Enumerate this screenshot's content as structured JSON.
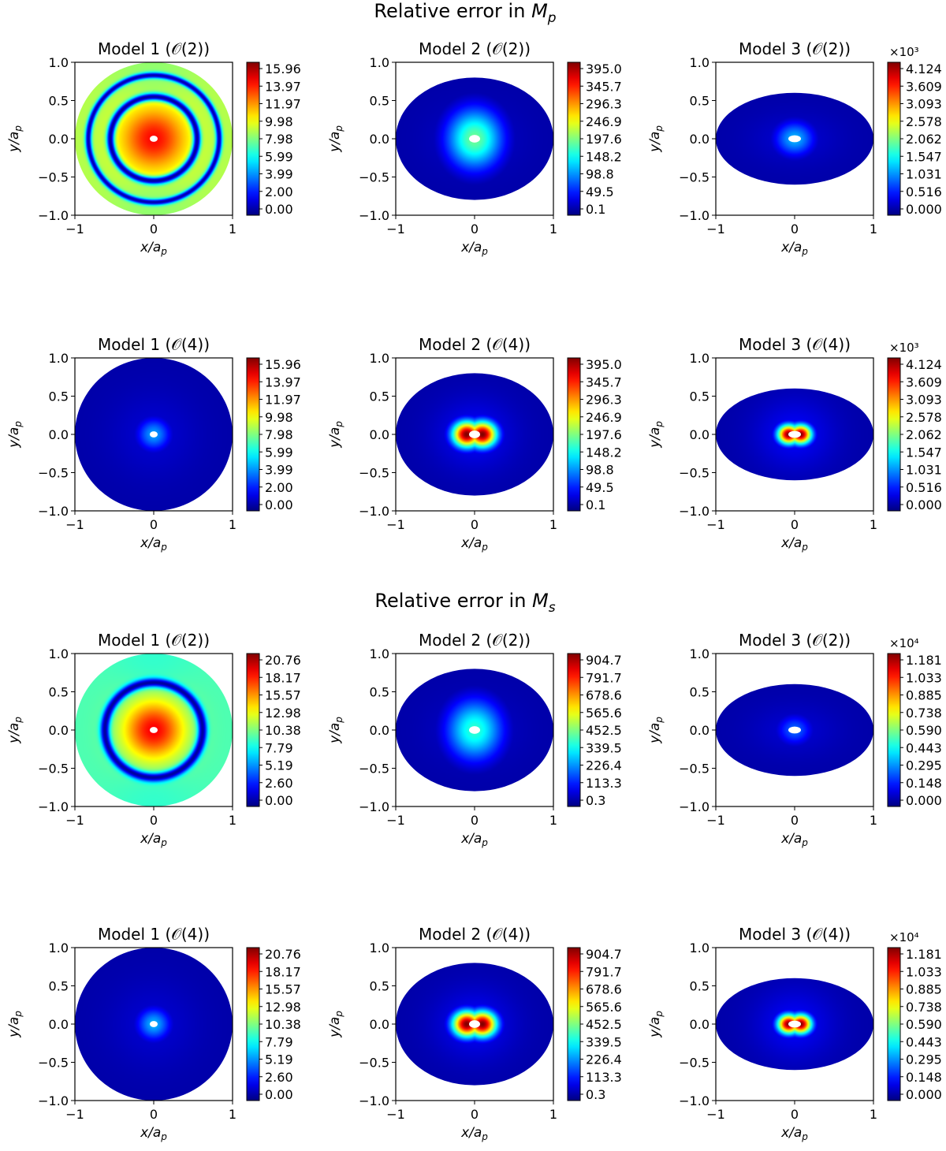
{
  "figure": {
    "section_titles": [
      {
        "text": "Relative error in ",
        "var": "M",
        "sub": "p"
      },
      {
        "text": "Relative error in ",
        "var": "M",
        "sub": "s"
      }
    ],
    "x_label": {
      "var": "x",
      "den": "a",
      "sub": "p"
    },
    "y_label": {
      "var": "y",
      "den": "a",
      "sub": "p"
    }
  },
  "chart_data": [
    {
      "type": "heatmap",
      "title": "Model 1 (𝒪(2))",
      "section": "Relative error in M_p",
      "xlim": [
        -1,
        1
      ],
      "ylim": [
        -1,
        1
      ],
      "x_ticks": [
        "−1",
        "0",
        "1"
      ],
      "y_ticks": [
        "1.0",
        "0.5",
        "0.0",
        "−0.5",
        "−1.0"
      ],
      "domain": {
        "shape": "disk",
        "semi_x": 1.0,
        "semi_y": 1.0
      },
      "hole": {
        "semi_x": 0.05,
        "semi_y": 0.04
      },
      "colorbar": {
        "ticks": [
          "15.96",
          "13.97",
          "11.97",
          "9.98",
          "7.98",
          "5.99",
          "3.99",
          "2.00",
          "0.00"
        ],
        "scale_label": ""
      },
      "pattern": {
        "kind": "rings",
        "center_intensity": 0.87,
        "rings": [
          {
            "r": 0.55,
            "w": 0.05,
            "i": 0.03
          },
          {
            "r": 0.83,
            "w": 0.04,
            "i": 0.04
          }
        ],
        "edge_intensity": 0.55,
        "lobes": 0
      }
    },
    {
      "type": "heatmap",
      "title": "Model 2 (𝒪(2))",
      "section": "Relative error in M_p",
      "xlim": [
        -1,
        1
      ],
      "ylim": [
        -1,
        1
      ],
      "x_ticks": [
        "−1",
        "0",
        "1"
      ],
      "y_ticks": [
        "1.0",
        "0.5",
        "0.0",
        "−0.5",
        "−1.0"
      ],
      "domain": {
        "shape": "ellipse",
        "semi_x": 1.0,
        "semi_y": 0.8
      },
      "hole": {
        "semi_x": 0.07,
        "semi_y": 0.05
      },
      "colorbar": {
        "ticks": [
          "395.0",
          "345.7",
          "296.3",
          "246.9",
          "197.6",
          "148.2",
          "98.8",
          "49.5",
          "0.1"
        ],
        "scale_label": ""
      },
      "pattern": {
        "kind": "blob",
        "peak": 0.48,
        "spread_x": 0.25,
        "spread_y": 0.28,
        "lobes": 0
      }
    },
    {
      "type": "heatmap",
      "title": "Model 3 (𝒪(2))",
      "section": "Relative error in M_p",
      "xlim": [
        -1,
        1
      ],
      "ylim": [
        -1,
        1
      ],
      "x_ticks": [
        "−1",
        "0",
        "1"
      ],
      "y_ticks": [
        "1.0",
        "0.5",
        "0.0",
        "−0.5",
        "−1.0"
      ],
      "domain": {
        "shape": "ellipse",
        "semi_x": 1.0,
        "semi_y": 0.6
      },
      "hole": {
        "semi_x": 0.08,
        "semi_y": 0.045
      },
      "colorbar": {
        "ticks": [
          "4.124",
          "3.609",
          "3.093",
          "2.578",
          "2.062",
          "1.547",
          "1.031",
          "0.516",
          "0.000"
        ],
        "scale_label": "×10³"
      },
      "pattern": {
        "kind": "blob",
        "peak": 0.3,
        "spread_x": 0.18,
        "spread_y": 0.16,
        "lobes": 0
      }
    },
    {
      "type": "heatmap",
      "title": "Model 1 (𝒪(4))",
      "section": "Relative error in M_p",
      "xlim": [
        -1,
        1
      ],
      "ylim": [
        -1,
        1
      ],
      "x_ticks": [
        "−1",
        "0",
        "1"
      ],
      "y_ticks": [
        "1.0",
        "0.5",
        "0.0",
        "−0.5",
        "−1.0"
      ],
      "domain": {
        "shape": "disk",
        "semi_x": 1.0,
        "semi_y": 1.0
      },
      "hole": {
        "semi_x": 0.05,
        "semi_y": 0.04
      },
      "colorbar": {
        "ticks": [
          "15.96",
          "13.97",
          "11.97",
          "9.98",
          "7.98",
          "5.99",
          "3.99",
          "2.00",
          "0.00"
        ],
        "scale_label": ""
      },
      "pattern": {
        "kind": "blob",
        "peak": 0.28,
        "spread_x": 0.15,
        "spread_y": 0.15,
        "lobes": 0
      }
    },
    {
      "type": "heatmap",
      "title": "Model 2 (𝒪(4))",
      "section": "Relative error in M_p",
      "xlim": [
        -1,
        1
      ],
      "ylim": [
        -1,
        1
      ],
      "x_ticks": [
        "−1",
        "0",
        "1"
      ],
      "y_ticks": [
        "1.0",
        "0.5",
        "0.0",
        "−0.5",
        "−1.0"
      ],
      "domain": {
        "shape": "ellipse",
        "semi_x": 1.0,
        "semi_y": 0.8
      },
      "hole": {
        "semi_x": 0.07,
        "semi_y": 0.05
      },
      "colorbar": {
        "ticks": [
          "395.0",
          "345.7",
          "296.3",
          "246.9",
          "197.6",
          "148.2",
          "98.8",
          "49.5",
          "0.1"
        ],
        "scale_label": ""
      },
      "pattern": {
        "kind": "blob",
        "peak": 1.0,
        "spread_x": 0.13,
        "spread_y": 0.12,
        "lobes": 2
      }
    },
    {
      "type": "heatmap",
      "title": "Model 3 (𝒪(4))",
      "section": "Relative error in M_p",
      "xlim": [
        -1,
        1
      ],
      "ylim": [
        -1,
        1
      ],
      "x_ticks": [
        "−1",
        "0",
        "1"
      ],
      "y_ticks": [
        "1.0",
        "0.5",
        "0.0",
        "−0.5",
        "−1.0"
      ],
      "domain": {
        "shape": "ellipse",
        "semi_x": 1.0,
        "semi_y": 0.6
      },
      "hole": {
        "semi_x": 0.08,
        "semi_y": 0.045
      },
      "colorbar": {
        "ticks": [
          "4.124",
          "3.609",
          "3.093",
          "2.578",
          "2.062",
          "1.547",
          "1.031",
          "0.516",
          "0.000"
        ],
        "scale_label": "×10³"
      },
      "pattern": {
        "kind": "blob",
        "peak": 1.0,
        "spread_x": 0.1,
        "spread_y": 0.09,
        "lobes": 2
      }
    },
    {
      "type": "heatmap",
      "title": "Model 1 (𝒪(2))",
      "section": "Relative error in M_s",
      "xlim": [
        -1,
        1
      ],
      "ylim": [
        -1,
        1
      ],
      "x_ticks": [
        "−1",
        "0",
        "1"
      ],
      "y_ticks": [
        "1.0",
        "0.5",
        "0.0",
        "−0.5",
        "−1.0"
      ],
      "domain": {
        "shape": "disk",
        "semi_x": 1.0,
        "semi_y": 1.0
      },
      "hole": {
        "semi_x": 0.05,
        "semi_y": 0.04
      },
      "colorbar": {
        "ticks": [
          "20.76",
          "18.17",
          "15.57",
          "12.98",
          "10.38",
          "7.79",
          "5.19",
          "2.60",
          "0.00"
        ],
        "scale_label": ""
      },
      "pattern": {
        "kind": "rings",
        "center_intensity": 0.88,
        "rings": [
          {
            "r": 0.62,
            "w": 0.06,
            "i": 0.03
          }
        ],
        "edge_intensity": 0.45,
        "lobes": 0
      }
    },
    {
      "type": "heatmap",
      "title": "Model 2 (𝒪(2))",
      "section": "Relative error in M_s",
      "xlim": [
        -1,
        1
      ],
      "ylim": [
        -1,
        1
      ],
      "x_ticks": [
        "−1",
        "0",
        "1"
      ],
      "y_ticks": [
        "1.0",
        "0.5",
        "0.0",
        "−0.5",
        "−1.0"
      ],
      "domain": {
        "shape": "ellipse",
        "semi_x": 1.0,
        "semi_y": 0.8
      },
      "hole": {
        "semi_x": 0.07,
        "semi_y": 0.05
      },
      "colorbar": {
        "ticks": [
          "904.7",
          "791.7",
          "678.6",
          "565.6",
          "452.5",
          "339.5",
          "226.4",
          "113.3",
          "0.3"
        ],
        "scale_label": ""
      },
      "pattern": {
        "kind": "blob",
        "peak": 0.42,
        "spread_x": 0.25,
        "spread_y": 0.28,
        "lobes": 0
      }
    },
    {
      "type": "heatmap",
      "title": "Model 3 (𝒪(2))",
      "section": "Relative error in M_s",
      "xlim": [
        -1,
        1
      ],
      "ylim": [
        -1,
        1
      ],
      "x_ticks": [
        "−1",
        "0",
        "1"
      ],
      "y_ticks": [
        "1.0",
        "0.5",
        "0.0",
        "−0.5",
        "−1.0"
      ],
      "domain": {
        "shape": "ellipse",
        "semi_x": 1.0,
        "semi_y": 0.6
      },
      "hole": {
        "semi_x": 0.08,
        "semi_y": 0.045
      },
      "colorbar": {
        "ticks": [
          "1.181",
          "1.033",
          "0.885",
          "0.738",
          "0.590",
          "0.443",
          "0.295",
          "0.148",
          "0.000"
        ],
        "scale_label": "×10⁴"
      },
      "pattern": {
        "kind": "blob",
        "peak": 0.22,
        "spread_x": 0.16,
        "spread_y": 0.14,
        "lobes": 0
      }
    },
    {
      "type": "heatmap",
      "title": "Model 1 (𝒪(4))",
      "section": "Relative error in M_s",
      "xlim": [
        -1,
        1
      ],
      "ylim": [
        -1,
        1
      ],
      "x_ticks": [
        "−1",
        "0",
        "1"
      ],
      "y_ticks": [
        "1.0",
        "0.5",
        "0.0",
        "−0.5",
        "−1.0"
      ],
      "domain": {
        "shape": "disk",
        "semi_x": 1.0,
        "semi_y": 1.0
      },
      "hole": {
        "semi_x": 0.05,
        "semi_y": 0.04
      },
      "colorbar": {
        "ticks": [
          "20.76",
          "18.17",
          "15.57",
          "12.98",
          "10.38",
          "7.79",
          "5.19",
          "2.60",
          "0.00"
        ],
        "scale_label": ""
      },
      "pattern": {
        "kind": "blob",
        "peak": 0.3,
        "spread_x": 0.15,
        "spread_y": 0.15,
        "lobes": 0
      }
    },
    {
      "type": "heatmap",
      "title": "Model 2 (𝒪(4))",
      "section": "Relative error in M_s",
      "xlim": [
        -1,
        1
      ],
      "ylim": [
        -1,
        1
      ],
      "x_ticks": [
        "−1",
        "0",
        "1"
      ],
      "y_ticks": [
        "1.0",
        "0.5",
        "0.0",
        "−0.5",
        "−1.0"
      ],
      "domain": {
        "shape": "ellipse",
        "semi_x": 1.0,
        "semi_y": 0.8
      },
      "hole": {
        "semi_x": 0.07,
        "semi_y": 0.05
      },
      "colorbar": {
        "ticks": [
          "904.7",
          "791.7",
          "678.6",
          "565.6",
          "452.5",
          "339.5",
          "226.4",
          "113.3",
          "0.3"
        ],
        "scale_label": ""
      },
      "pattern": {
        "kind": "blob",
        "peak": 1.0,
        "spread_x": 0.13,
        "spread_y": 0.12,
        "lobes": 2
      }
    },
    {
      "type": "heatmap",
      "title": "Model 3 (𝒪(4))",
      "section": "Relative error in M_s",
      "xlim": [
        -1,
        1
      ],
      "ylim": [
        -1,
        1
      ],
      "x_ticks": [
        "−1",
        "0",
        "1"
      ],
      "y_ticks": [
        "1.0",
        "0.5",
        "0.0",
        "−0.5",
        "−1.0"
      ],
      "domain": {
        "shape": "ellipse",
        "semi_x": 1.0,
        "semi_y": 0.6
      },
      "hole": {
        "semi_x": 0.08,
        "semi_y": 0.045
      },
      "colorbar": {
        "ticks": [
          "1.181",
          "1.033",
          "0.885",
          "0.738",
          "0.590",
          "0.443",
          "0.295",
          "0.148",
          "0.000"
        ],
        "scale_label": "×10⁴"
      },
      "pattern": {
        "kind": "blob",
        "peak": 1.0,
        "spread_x": 0.1,
        "spread_y": 0.09,
        "lobes": 2
      }
    }
  ]
}
